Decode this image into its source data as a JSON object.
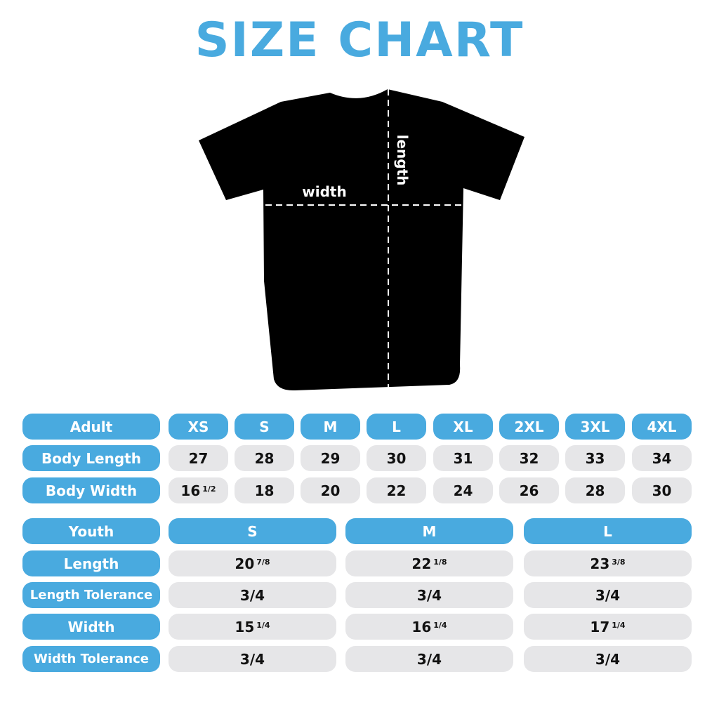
{
  "title": "SIZE CHART",
  "shirt": {
    "width_label": "width",
    "length_label": "length",
    "color": "#000000"
  },
  "colors": {
    "accent": "#49aadf",
    "cell": "#e6e6e8"
  },
  "adult": {
    "header": "Adult",
    "sizes": [
      "XS",
      "S",
      "M",
      "L",
      "XL",
      "2XL",
      "3XL",
      "4XL"
    ],
    "rows": [
      {
        "label": "Body Length",
        "values": [
          {
            "whole": "27",
            "frac": ""
          },
          {
            "whole": "28",
            "frac": ""
          },
          {
            "whole": "29",
            "frac": ""
          },
          {
            "whole": "30",
            "frac": ""
          },
          {
            "whole": "31",
            "frac": ""
          },
          {
            "whole": "32",
            "frac": ""
          },
          {
            "whole": "33",
            "frac": ""
          },
          {
            "whole": "34",
            "frac": ""
          }
        ]
      },
      {
        "label": "Body Width",
        "values": [
          {
            "whole": "16",
            "frac": "1/2"
          },
          {
            "whole": "18",
            "frac": ""
          },
          {
            "whole": "20",
            "frac": ""
          },
          {
            "whole": "22",
            "frac": ""
          },
          {
            "whole": "24",
            "frac": ""
          },
          {
            "whole": "26",
            "frac": ""
          },
          {
            "whole": "28",
            "frac": ""
          },
          {
            "whole": "30",
            "frac": ""
          }
        ]
      }
    ]
  },
  "youth": {
    "header": "Youth",
    "sizes": [
      "S",
      "M",
      "L"
    ],
    "rows": [
      {
        "label": "Length",
        "values": [
          {
            "whole": "20",
            "frac": "7/8"
          },
          {
            "whole": "22",
            "frac": "1/8"
          },
          {
            "whole": "23",
            "frac": "3/8"
          }
        ]
      },
      {
        "label": "Length Tolerance",
        "values": [
          {
            "whole": "3/4",
            "frac": ""
          },
          {
            "whole": "3/4",
            "frac": ""
          },
          {
            "whole": "3/4",
            "frac": ""
          }
        ]
      },
      {
        "label": "Width",
        "values": [
          {
            "whole": "15",
            "frac": "1/4"
          },
          {
            "whole": "16",
            "frac": "1/4"
          },
          {
            "whole": "17",
            "frac": "1/4"
          }
        ]
      },
      {
        "label": "Width Tolerance",
        "values": [
          {
            "whole": "3/4",
            "frac": ""
          },
          {
            "whole": "3/4",
            "frac": ""
          },
          {
            "whole": "3/4",
            "frac": ""
          }
        ]
      }
    ]
  }
}
